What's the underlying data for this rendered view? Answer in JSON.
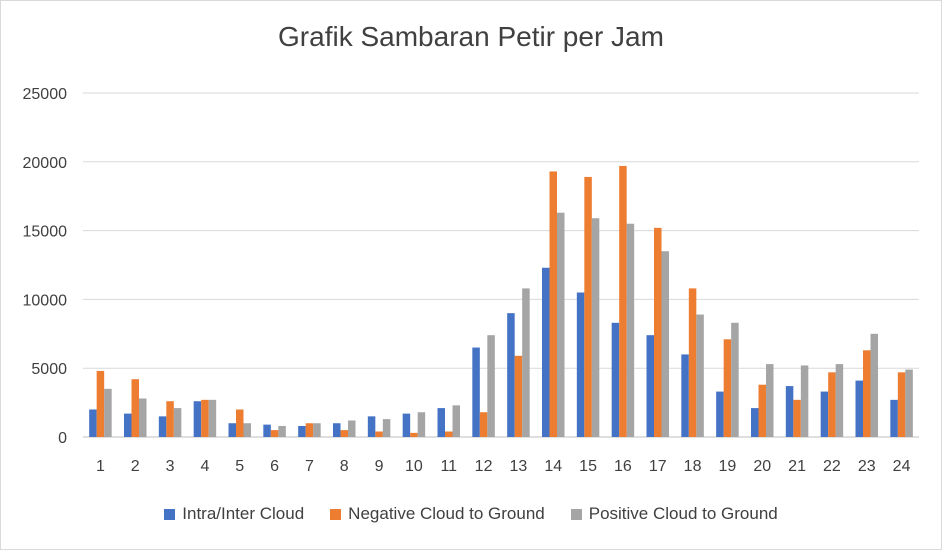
{
  "chart_data": {
    "type": "bar",
    "title": "Grafik Sambaran Petir per Jam",
    "xlabel": "",
    "ylabel": "",
    "ylim": [
      0,
      25000
    ],
    "yticks": [
      0,
      5000,
      10000,
      15000,
      20000,
      25000
    ],
    "grid": true,
    "legend_position": "bottom",
    "categories": [
      "1",
      "2",
      "3",
      "4",
      "5",
      "6",
      "7",
      "8",
      "9",
      "10",
      "11",
      "12",
      "13",
      "14",
      "15",
      "16",
      "17",
      "18",
      "19",
      "20",
      "21",
      "22",
      "23",
      "24"
    ],
    "series": [
      {
        "name": "Intra/Inter Cloud",
        "color": "#4472c4",
        "values": [
          2000,
          1700,
          1500,
          2600,
          1000,
          900,
          800,
          1000,
          1500,
          1700,
          2100,
          6500,
          9000,
          12300,
          10500,
          8300,
          7400,
          6000,
          3300,
          2100,
          3700,
          3300,
          4100,
          2700
        ]
      },
      {
        "name": "Negative Cloud to Ground",
        "color": "#ed7d31",
        "values": [
          4800,
          4200,
          2600,
          2700,
          2000,
          500,
          1000,
          500,
          400,
          300,
          400,
          1800,
          5900,
          19300,
          18900,
          19700,
          15200,
          10800,
          7100,
          3800,
          2700,
          4700,
          6300,
          4700
        ]
      },
      {
        "name": "Positive Cloud to Ground",
        "color": "#a5a5a5",
        "values": [
          3500,
          2800,
          2100,
          2700,
          1000,
          800,
          1000,
          1200,
          1300,
          1800,
          2300,
          7400,
          10800,
          16300,
          15900,
          15500,
          13500,
          8900,
          8300,
          5300,
          5200,
          5300,
          7500,
          4900
        ]
      }
    ]
  }
}
